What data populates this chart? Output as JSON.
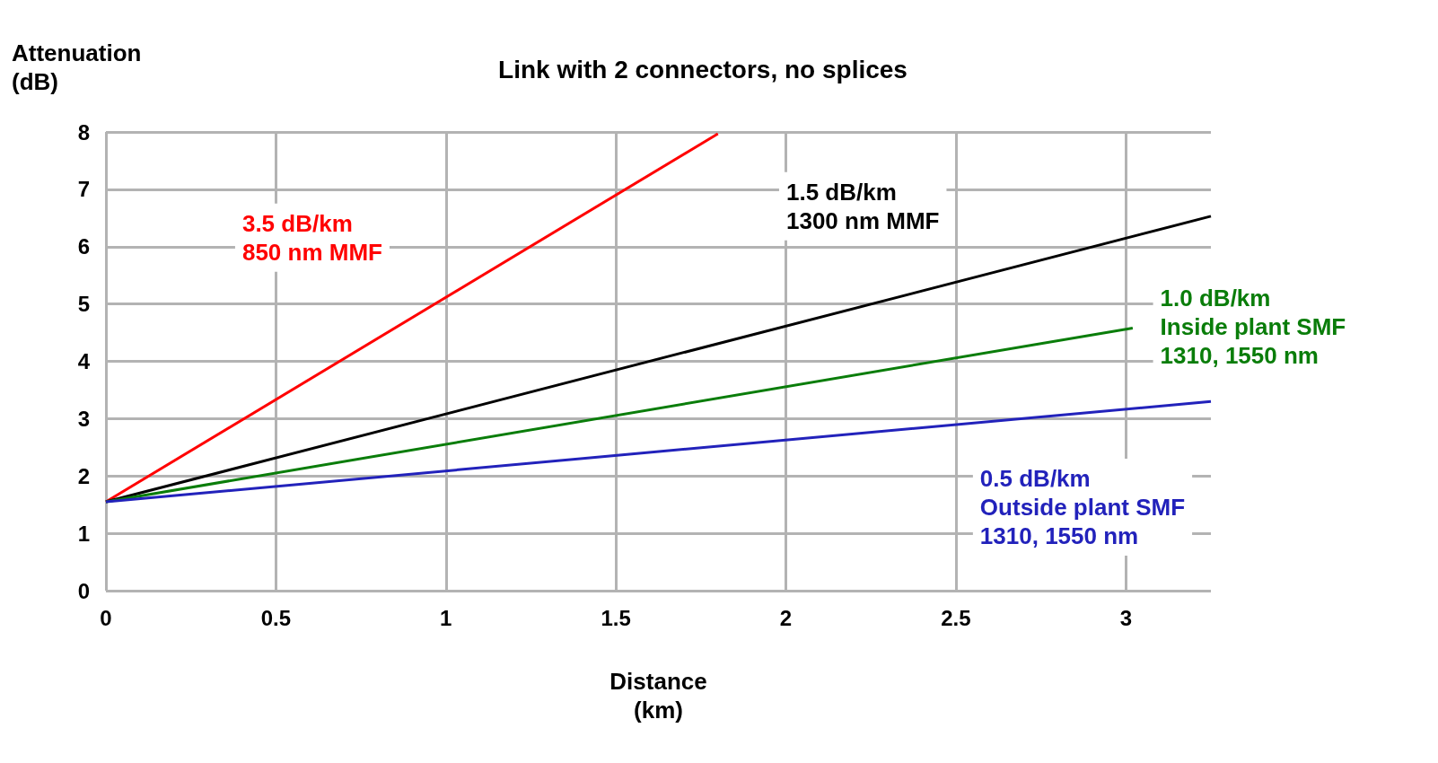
{
  "chart_data": {
    "type": "line",
    "title": "Link with 2 connectors, no splices",
    "xlabel": "Distance\n(km)",
    "ylabel": "Attenuation\n(dB)",
    "xlim": [
      0,
      3.25
    ],
    "xticks": [
      0,
      0.5,
      1,
      1.5,
      2,
      2.5,
      3
    ],
    "ylim": [
      0,
      8
    ],
    "yticks": [
      0,
      1,
      2,
      3,
      4,
      5,
      6,
      7,
      8
    ],
    "grid": true,
    "legend": false,
    "marker": "none",
    "line_style": "solid",
    "series": [
      {
        "name": "3.5 dB/km\n850 nm MMF",
        "color": "#ff0000",
        "x": [
          0,
          1.8
        ],
        "values": [
          1.55,
          7.97
        ]
      },
      {
        "name": "1.5 dB/km\n1300 nm MMF",
        "color": "#000000",
        "x": [
          0,
          3.25
        ],
        "values": [
          1.55,
          6.53
        ]
      },
      {
        "name": "1.0 dB/km\nInside plant SMF\n1310, 1550 nm",
        "color": "#0a7d0a",
        "x": [
          0,
          3.02
        ],
        "values": [
          1.55,
          4.58
        ]
      },
      {
        "name": "0.5 dB/km\nOutside plant SMF\n1310, 1550 nm",
        "color": "#2222bb",
        "x": [
          0,
          3.25
        ],
        "values": [
          1.55,
          3.3
        ]
      }
    ]
  }
}
